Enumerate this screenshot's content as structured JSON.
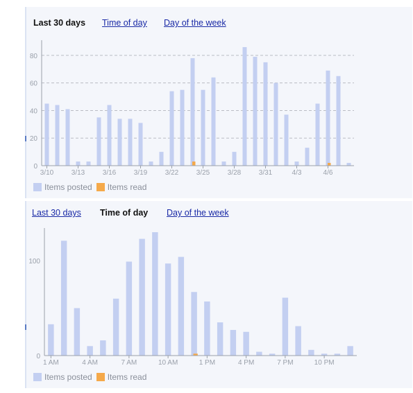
{
  "colors": {
    "posted": "#c3cff1",
    "read": "#f5a94a",
    "grid": "#b9bcc4",
    "axis": "#9aa0aa",
    "tick_text": "#9aa0aa"
  },
  "panel1": {
    "tabs": [
      {
        "label": "Last 30 days",
        "active": true
      },
      {
        "label": "Time of day",
        "active": false
      },
      {
        "label": "Day of the week",
        "active": false
      }
    ],
    "legend": {
      "posted": "Items posted",
      "read": "Items read"
    }
  },
  "panel2": {
    "tabs": [
      {
        "label": "Last 30 days",
        "active": false
      },
      {
        "label": "Time of day",
        "active": true
      },
      {
        "label": "Day of the week",
        "active": false
      }
    ],
    "legend": {
      "posted": "Items posted",
      "read": "Items read"
    }
  },
  "chart_data": [
    {
      "type": "bar",
      "title": "",
      "xlabel": "",
      "ylabel": "",
      "ylim": [
        0,
        88
      ],
      "yticks": [
        0,
        20,
        40,
        60,
        80
      ],
      "grid": true,
      "legend_position": "bottom-left",
      "x_tick_labels": [
        {
          "index": 0,
          "label": "3/10"
        },
        {
          "index": 3,
          "label": "3/13"
        },
        {
          "index": 6,
          "label": "3/16"
        },
        {
          "index": 9,
          "label": "3/19"
        },
        {
          "index": 12,
          "label": "3/22"
        },
        {
          "index": 15,
          "label": "3/25"
        },
        {
          "index": 18,
          "label": "3/28"
        },
        {
          "index": 21,
          "label": "3/31"
        },
        {
          "index": 24,
          "label": "4/3"
        },
        {
          "index": 27,
          "label": "4/6"
        }
      ],
      "series": [
        {
          "name": "Items posted",
          "values": [
            45,
            44,
            41,
            3,
            3,
            35,
            44,
            34,
            34,
            31,
            3,
            10,
            54,
            55,
            78,
            55,
            64,
            3,
            10,
            86,
            79,
            75,
            60,
            37,
            3,
            13,
            45,
            69,
            65,
            2
          ]
        },
        {
          "name": "Items read",
          "values": [
            0,
            0,
            0,
            0,
            0,
            0,
            0,
            0,
            0,
            0,
            0,
            0,
            0,
            0,
            3,
            0,
            0,
            0,
            0,
            0,
            0,
            0,
            0,
            0,
            0,
            0,
            0,
            2,
            0,
            0
          ]
        }
      ]
    },
    {
      "type": "bar",
      "title": "",
      "xlabel": "",
      "ylabel": "",
      "ylim": [
        0,
        130
      ],
      "yticks": [
        0,
        100
      ],
      "grid": false,
      "legend_position": "bottom-left",
      "x_tick_labels": [
        {
          "index": 0,
          "label": "1 AM"
        },
        {
          "index": 3,
          "label": "4 AM"
        },
        {
          "index": 6,
          "label": "7 AM"
        },
        {
          "index": 9,
          "label": "10 AM"
        },
        {
          "index": 12,
          "label": "1 PM"
        },
        {
          "index": 15,
          "label": "4 PM"
        },
        {
          "index": 18,
          "label": "7 PM"
        },
        {
          "index": 21,
          "label": "10 PM"
        }
      ],
      "series": [
        {
          "name": "Items posted",
          "values": [
            33,
            121,
            50,
            10,
            16,
            60,
            99,
            123,
            130,
            97,
            104,
            67,
            57,
            35,
            27,
            25,
            4,
            2,
            61,
            31,
            6,
            2,
            2,
            10
          ]
        },
        {
          "name": "Items read",
          "values": [
            0,
            0,
            0,
            0,
            0,
            0,
            0,
            0,
            0,
            0,
            0,
            2,
            0,
            0,
            0,
            0,
            0,
            0,
            0,
            0,
            0,
            0,
            0,
            0
          ]
        }
      ]
    }
  ]
}
